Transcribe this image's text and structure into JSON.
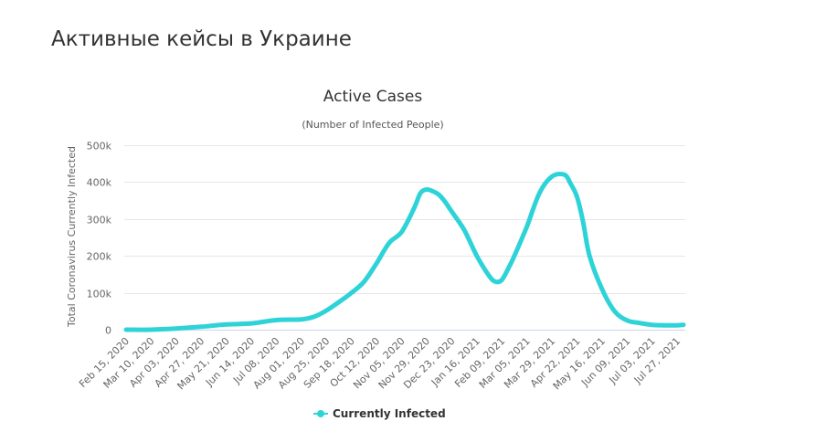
{
  "page": {
    "heading": "Активные кейсы в Украине"
  },
  "chart_data": {
    "type": "line",
    "title": "Active Cases",
    "subtitle": "(Number of Infected People)",
    "ylabel": "Total Coronavirus Currently Infected",
    "xlabel": "",
    "ylim": [
      0,
      500000
    ],
    "yticks": [
      0,
      100000,
      200000,
      300000,
      400000,
      500000
    ],
    "ytick_labels": [
      "0",
      "100k",
      "200k",
      "300k",
      "400k",
      "500k"
    ],
    "xtick_labels": [
      "Feb 15, 2020",
      "Mar 10, 2020",
      "Apr 03, 2020",
      "Apr 27, 2020",
      "May 21, 2020",
      "Jun 14, 2020",
      "Jul 08, 2020",
      "Aug 01, 2020",
      "Aug 25, 2020",
      "Sep 18, 2020",
      "Oct 12, 2020",
      "Nov 05, 2020",
      "Nov 29, 2020",
      "Dec 23, 2020",
      "Jan 16, 2021",
      "Feb 09, 2021",
      "Mar 05, 2021",
      "Mar 29, 2021",
      "Apr 22, 2021",
      "May 16, 2021",
      "Jun 09, 2021",
      "Jul 03, 2021",
      "Jul 27, 2021"
    ],
    "legend_position": "bottom-center",
    "grid": true,
    "color": "#2ed3d8",
    "series": [
      {
        "name": "Currently Infected",
        "x": [
          "Feb 15, 2020",
          "Mar 10, 2020",
          "Apr 03, 2020",
          "Apr 27, 2020",
          "May 21, 2020",
          "Jun 14, 2020",
          "Jul 08, 2020",
          "Aug 01, 2020",
          "Aug 13, 2020",
          "Aug 25, 2020",
          "Sep 06, 2020",
          "Sep 18, 2020",
          "Sep 30, 2020",
          "Oct 12, 2020",
          "Oct 24, 2020",
          "Nov 05, 2020",
          "Nov 17, 2020",
          "Nov 23, 2020",
          "Nov 29, 2020",
          "Dec 05, 2020",
          "Dec 11, 2020",
          "Dec 17, 2020",
          "Dec 23, 2020",
          "Jan 04, 2021",
          "Jan 16, 2021",
          "Jan 28, 2021",
          "Feb 03, 2021",
          "Feb 09, 2021",
          "Feb 15, 2021",
          "Feb 21, 2021",
          "Mar 05, 2021",
          "Mar 17, 2021",
          "Mar 29, 2021",
          "Apr 10, 2021",
          "Apr 16, 2021",
          "Apr 22, 2021",
          "Apr 28, 2021",
          "May 04, 2021",
          "May 16, 2021",
          "May 28, 2021",
          "Jun 09, 2021",
          "Jun 21, 2021",
          "Jul 03, 2021",
          "Jul 15, 2021",
          "Jul 27, 2021",
          "Aug 02, 2021"
        ],
        "values": [
          0,
          0,
          3000,
          8000,
          14000,
          17000,
          26000,
          28000,
          35000,
          52000,
          75000,
          100000,
          130000,
          180000,
          235000,
          265000,
          330000,
          370000,
          380000,
          375000,
          365000,
          345000,
          320000,
          270000,
          200000,
          145000,
          130000,
          135000,
          165000,
          200000,
          280000,
          370000,
          415000,
          420000,
          395000,
          360000,
          290000,
          200000,
          110000,
          50000,
          25000,
          18000,
          13000,
          12000,
          12000,
          13000
        ]
      }
    ]
  }
}
